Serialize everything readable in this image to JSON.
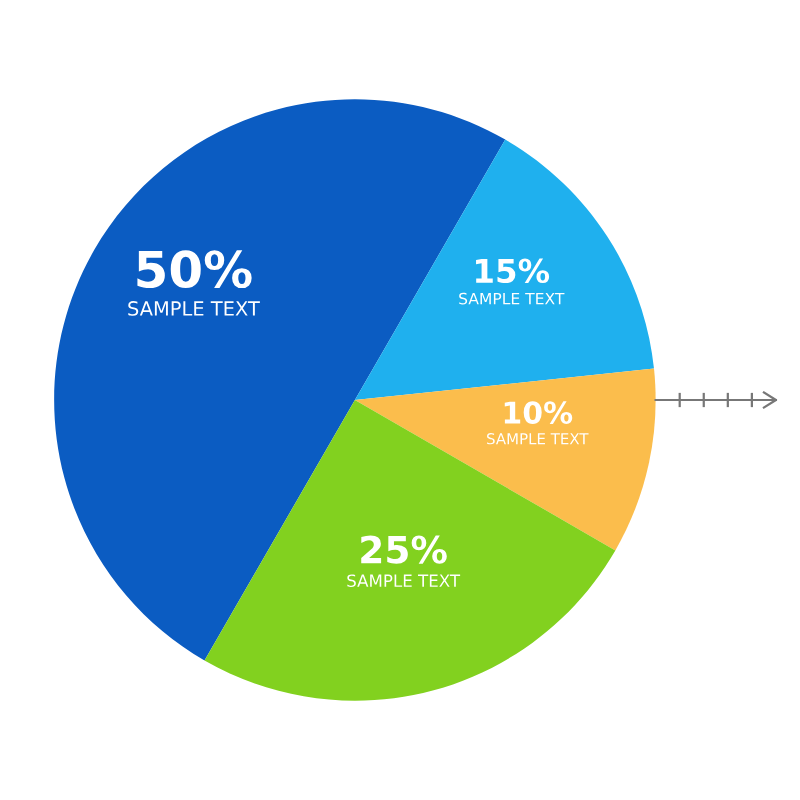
{
  "chart_data": {
    "type": "pie",
    "categories": [
      "SAMPLE TEXT",
      "SAMPLE TEXT",
      "SAMPLE TEXT",
      "SAMPLE TEXT"
    ],
    "values": [
      50,
      15,
      10,
      25
    ],
    "value_labels": [
      "50%",
      "15%",
      "10%",
      "25%"
    ],
    "colors": [
      "#0b5cc2",
      "#1fb0ee",
      "#fbbd4c",
      "#82d11f"
    ]
  }
}
